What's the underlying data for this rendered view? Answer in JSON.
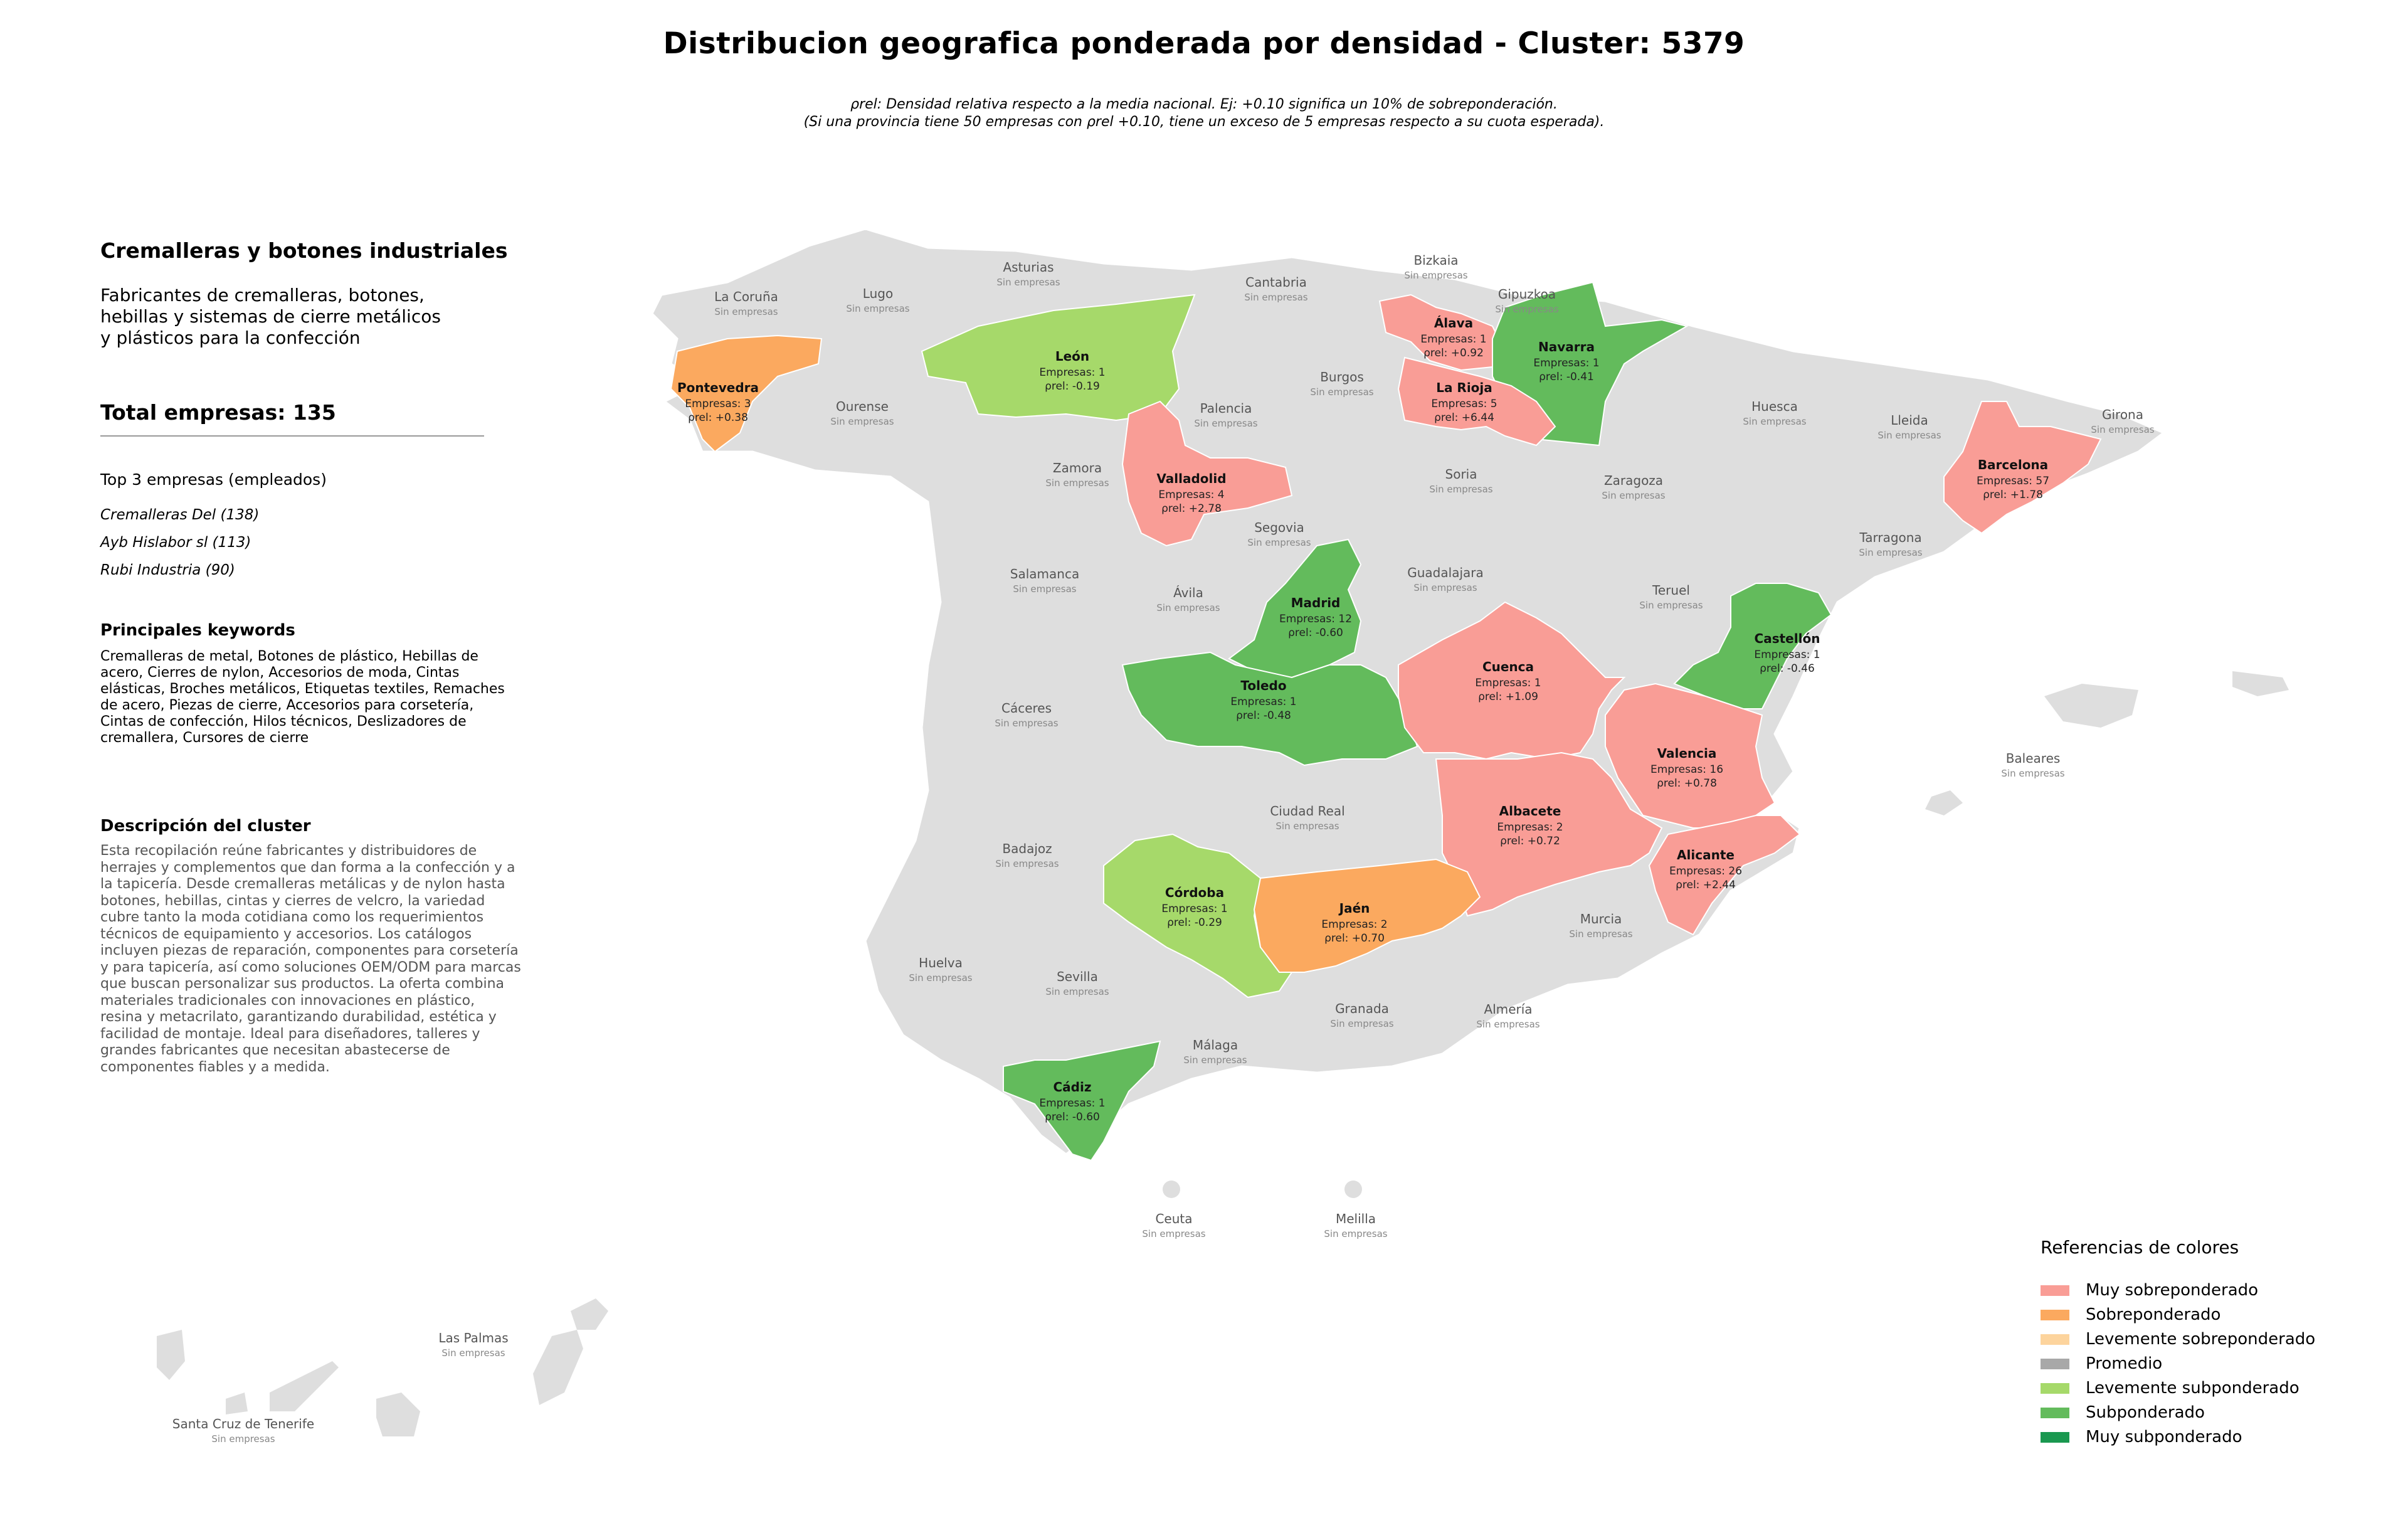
{
  "title": "Distribucion geografica ponderada por densidad - Cluster: 5379",
  "subtitle_line1": "ρrel: Densidad relativa respecto a la media nacional. Ej: +0.10 significa un 10% de sobreponderación.",
  "subtitle_line2": "(Si una provincia tiene 50 empresas con ρrel +0.10, tiene un exceso de 5 empresas respecto a su cuota esperada).",
  "sidebar": {
    "cluster_name": "Cremalleras y botones industriales",
    "cluster_desc_lines": [
      "Fabricantes de cremalleras, botones,",
      "hebillas y sistemas de cierre metálicos",
      "y plásticos para la confección"
    ],
    "total": "Total empresas: 135",
    "top3_title": "Top 3 empresas (empleados)",
    "top3": [
      "Cremalleras Del (138)",
      "Ayb Hislabor sl (113)",
      "Rubi Industria (90)"
    ],
    "keywords_title": "Principales keywords",
    "keywords_lines": [
      "Cremalleras de metal, Botones de plástico, Hebillas de",
      "acero, Cierres de nylon, Accesorios de moda, Cintas",
      "elásticas, Broches metálicos, Etiquetas textiles, Remaches",
      "de acero, Piezas de cierre, Accesorios para corsetería,",
      "Cintas de confección, Hilos técnicos, Deslizadores de",
      "cremallera, Cursores de cierre"
    ],
    "description_title": "Descripción del cluster",
    "description_lines": [
      "Esta recopilación reúne fabricantes y distribuidores de",
      "herrajes y complementos que dan forma a la confección y a",
      "la tapicería. Desde cremalleras metálicas y de nylon hasta",
      "botones, hebillas, cintas y cierres de velcro, la variedad",
      "cubre tanto la moda cotidiana como los requerimientos",
      "técnicos de equipamiento y accesorios. Los catálogos",
      "incluyen piezas de reparación, componentes para corsetería",
      "y para tapicería, así como soluciones OEM/ODM para marcas",
      "que buscan personalizar sus productos. La oferta combina",
      "materiales tradicionales con innovaciones en plástico,",
      "resina y metacrilato, garantizando durabilidad, estética y",
      "facilidad de montaje. Ideal para diseñadores, talleres y",
      "grandes fabricantes que necesitan abastecerse de",
      "componentes fiables y a medida."
    ]
  },
  "map": {
    "rho_prefix": "ρrel: ",
    "highlighted": [
      {
        "name": "Pontevedra",
        "companies": "Empresas: 3",
        "rho": "+0.38",
        "category": "Sobreponderado"
      },
      {
        "name": "León",
        "companies": "Empresas: 1",
        "rho": "-0.19",
        "category": "Levemente subponderado"
      },
      {
        "name": "Álava",
        "companies": "Empresas: 1",
        "rho": "+0.92",
        "category": "Muy sobreponderado"
      },
      {
        "name": "Navarra",
        "companies": "Empresas: 1",
        "rho": "-0.41",
        "category": "Subponderado"
      },
      {
        "name": "La Rioja",
        "companies": "Empresas: 5",
        "rho": "+6.44",
        "category": "Muy sobreponderado"
      },
      {
        "name": "Valladolid",
        "companies": "Empresas: 4",
        "rho": "+2.78",
        "category": "Muy sobreponderado"
      },
      {
        "name": "Barcelona",
        "companies": "Empresas: 57",
        "rho": "+1.78",
        "category": "Muy sobreponderado"
      },
      {
        "name": "Madrid",
        "companies": "Empresas: 12",
        "rho": "-0.60",
        "category": "Subponderado"
      },
      {
        "name": "Toledo",
        "companies": "Empresas: 1",
        "rho": "-0.48",
        "category": "Subponderado"
      },
      {
        "name": "Cuenca",
        "companies": "Empresas: 1",
        "rho": "+1.09",
        "category": "Muy sobreponderado"
      },
      {
        "name": "Castellón",
        "companies": "Empresas: 1",
        "rho": "-0.46",
        "category": "Subponderado"
      },
      {
        "name": "Valencia",
        "companies": "Empresas: 16",
        "rho": "+0.78",
        "category": "Muy sobreponderado"
      },
      {
        "name": "Albacete",
        "companies": "Empresas: 2",
        "rho": "+0.72",
        "category": "Muy sobreponderado"
      },
      {
        "name": "Alicante",
        "companies": "Empresas: 26",
        "rho": "+2.44",
        "category": "Muy sobreponderado"
      },
      {
        "name": "Córdoba",
        "companies": "Empresas: 1",
        "rho": "-0.29",
        "category": "Levemente subponderado"
      },
      {
        "name": "Jaén",
        "companies": "Empresas: 2",
        "rho": "+0.70",
        "category": "Sobreponderado"
      },
      {
        "name": "Cádiz",
        "companies": "Empresas: 1",
        "rho": "-0.60",
        "category": "Subponderado"
      }
    ],
    "empty_label": "Sin empresas",
    "empty_provinces": [
      "La Coruña",
      "Lugo",
      "Asturias",
      "Cantabria",
      "Bizkaia",
      "Gipuzkoa",
      "Ourense",
      "Palencia",
      "Burgos",
      "Huesca",
      "Lleida",
      "Girona",
      "Zamora",
      "Soria",
      "Zaragoza",
      "Tarragona",
      "Segovia",
      "Salamanca",
      "Guadalajara",
      "Ávila",
      "Teruel",
      "Cáceres",
      "Baleares",
      "Ciudad Real",
      "Badajoz",
      "Huelva",
      "Sevilla",
      "Murcia",
      "Granada",
      "Almería",
      "Málaga",
      "Ceuta",
      "Melilla",
      "Las Palmas",
      "Santa Cruz de Tenerife"
    ]
  },
  "legend": {
    "title": "Referencias de colores",
    "items": [
      {
        "label": "Muy sobreponderado",
        "color": "#f99d96"
      },
      {
        "label": "Sobreponderado",
        "color": "#fba95f"
      },
      {
        "label": "Levemente sobreponderado",
        "color": "#fdd49d"
      },
      {
        "label": "Promedio",
        "color": "#a8a8a8"
      },
      {
        "label": "Levemente subponderado",
        "color": "#a6d96a"
      },
      {
        "label": "Subponderado",
        "color": "#63bb5c"
      },
      {
        "label": "Muy subponderado",
        "color": "#1a9850"
      }
    ]
  },
  "colors": {
    "empty_province": "#dedede",
    "border": "#ffffff"
  }
}
